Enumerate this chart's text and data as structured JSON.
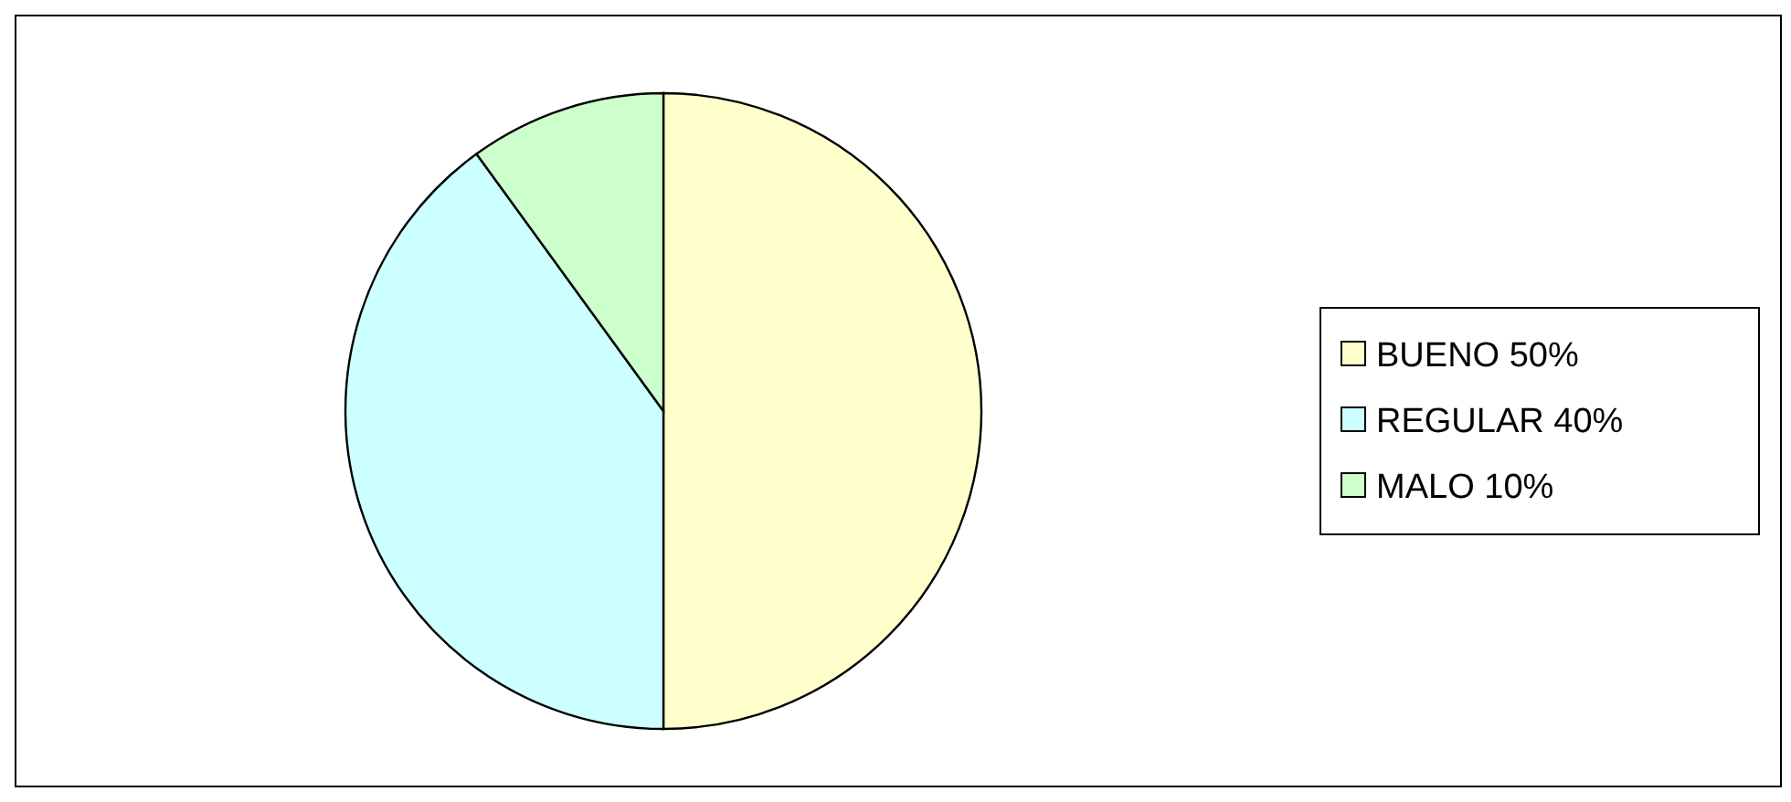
{
  "chart_data": {
    "type": "pie",
    "categories": [
      "BUENO 50%",
      "REGULAR 40%",
      "MALO 10%"
    ],
    "values": [
      50,
      40,
      10
    ],
    "colors": [
      "#ffffcc",
      "#ccffff",
      "#ccffcc"
    ],
    "legend": "right"
  }
}
